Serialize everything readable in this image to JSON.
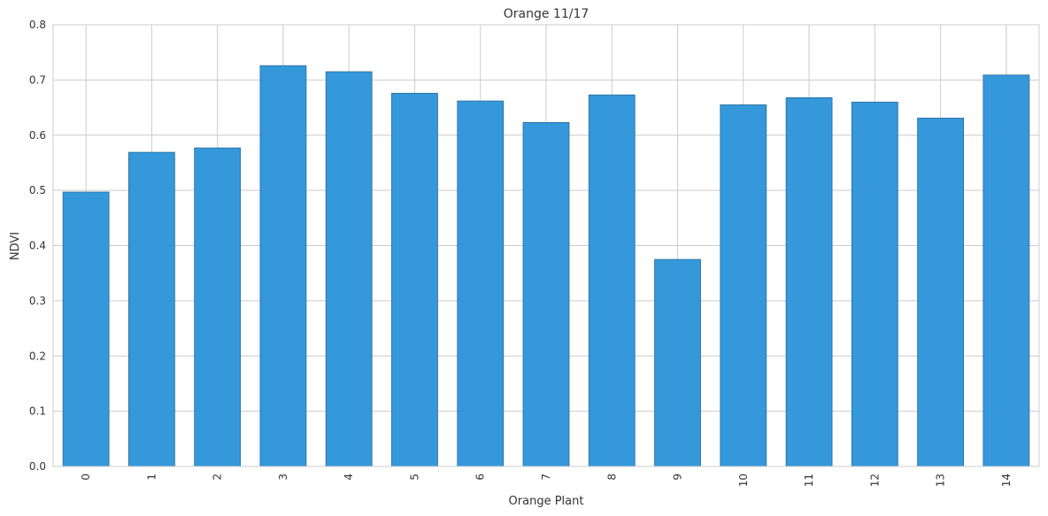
{
  "chart_data": {
    "type": "bar",
    "title": "Orange 11/17",
    "xlabel": "Orange Plant",
    "ylabel": "NDVI",
    "categories": [
      "0",
      "1",
      "2",
      "3",
      "4",
      "5",
      "6",
      "7",
      "8",
      "9",
      "10",
      "11",
      "12",
      "13",
      "14"
    ],
    "values": [
      0.497,
      0.569,
      0.577,
      0.726,
      0.715,
      0.676,
      0.662,
      0.623,
      0.673,
      0.375,
      0.655,
      0.668,
      0.66,
      0.631,
      0.709
    ],
    "ylim": [
      0,
      0.8
    ],
    "yticks": [
      "0.0",
      "0.1",
      "0.2",
      "0.3",
      "0.4",
      "0.5",
      "0.6",
      "0.7",
      "0.8"
    ],
    "grid": true,
    "x_tick_rotation": "vertical",
    "bar_color": "#3498db",
    "bar_edge_color": "#2c6b94",
    "grid_color": "#cccccc"
  }
}
